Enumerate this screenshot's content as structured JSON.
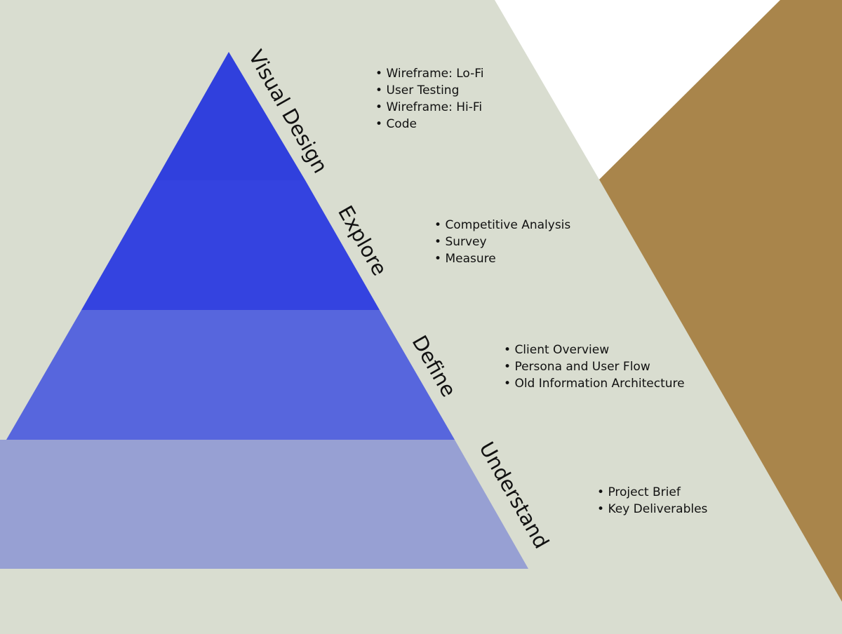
{
  "colors": {
    "background": "#d9ddd0",
    "corner_white": "#ffffff",
    "corner_brown": "#a9854b",
    "level_top": "#3040dd",
    "level_second": "#3443e0",
    "level_third": "#5766dd",
    "level_base": "#97a0d3"
  },
  "levels": [
    {
      "label": "Visual Design",
      "items": [
        "Wireframe: Lo-Fi",
        "User Testing",
        "Wireframe: Hi-Fi",
        "Code"
      ]
    },
    {
      "label": "Explore",
      "items": [
        "Competitive Analysis",
        "Survey",
        "Measure"
      ]
    },
    {
      "label": "Define",
      "items": [
        "Client Overview",
        "Persona and User Flow",
        "Old Information Architecture"
      ]
    },
    {
      "label": "Understand",
      "items": [
        "Project Brief",
        "Key Deliverables"
      ]
    }
  ]
}
